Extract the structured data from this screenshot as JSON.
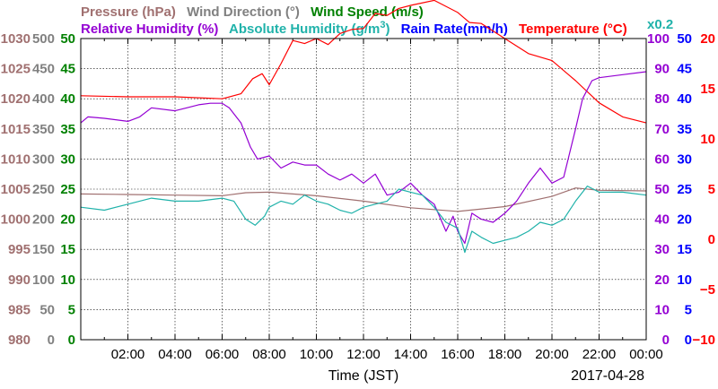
{
  "chart_data": {
    "type": "line",
    "colors": {
      "pressure": "#a07070",
      "wind_direction": "#808080",
      "wind_speed": "#008000",
      "relative_humidity": "#9400d3",
      "absolute_humidity": "#20b2aa",
      "rain_rate": "#0000ff",
      "temperature": "#ff0000"
    },
    "titles": {
      "pressure": "Pressure (hPa)",
      "wind_direction": "Wind Direction (°)",
      "wind_speed": "Wind Speed (m/s)",
      "relative_humidity": "Relative Humidity (%)",
      "absolute_humidity_prefix": "Absolute Humidity (g/m",
      "absolute_humidity_sup": "3",
      "absolute_humidity_suffix": ")",
      "rain_rate": "Rain Rate(mm/h)",
      "temperature_prefix": "Temperature (",
      "temperature_unit": "°C",
      "temperature_suffix": ")",
      "absolute_humidity_scale": "x0.2"
    },
    "xlabel": "Time (JST)",
    "date": "2017-04-28",
    "x_ticks": [
      "02:00",
      "04:00",
      "06:00",
      "08:00",
      "10:00",
      "12:00",
      "14:00",
      "16:00",
      "18:00",
      "20:00",
      "22:00",
      "00:00"
    ],
    "xlim": [
      0,
      24
    ],
    "axes": {
      "pressure": {
        "ticks": [
          "1030",
          "1025",
          "1020",
          "1015",
          "1010",
          "1005",
          "1000",
          "995",
          "990",
          "985",
          "980"
        ],
        "ylim": [
          980,
          1030
        ]
      },
      "wind_direction": {
        "ticks": [
          "500",
          "450",
          "400",
          "350",
          "300",
          "250",
          "200",
          "150",
          "100",
          "50",
          "0"
        ],
        "ylim": [
          0,
          500
        ]
      },
      "wind_speed": {
        "ticks": [
          "50",
          "45",
          "40",
          "35",
          "30",
          "25",
          "20",
          "15",
          "10",
          "5",
          "0"
        ],
        "ylim": [
          0,
          50
        ]
      },
      "relative_humidity": {
        "ticks": [
          "100",
          "90",
          "80",
          "70",
          "60",
          "50",
          "40",
          "30",
          "20",
          "10",
          "0"
        ],
        "ylim": [
          0,
          100
        ]
      },
      "rain_rate": {
        "ticks": [
          "50",
          "45",
          "40",
          "35",
          "30",
          "25",
          "20",
          "15",
          "10",
          "5",
          "0"
        ],
        "ylim": [
          0,
          50
        ]
      },
      "temperature": {
        "ticks": [
          "20",
          "15",
          "10",
          "5",
          "0",
          "−5",
          "−10"
        ],
        "ylim": [
          -10,
          20
        ]
      }
    },
    "series": [
      {
        "key": "pressure",
        "axis": "pressure",
        "points": [
          [
            0,
            1004.2
          ],
          [
            2,
            1004.1
          ],
          [
            4,
            1004.0
          ],
          [
            6,
            1003.9
          ],
          [
            7,
            1004.4
          ],
          [
            8,
            1004.5
          ],
          [
            10,
            1003.9
          ],
          [
            12,
            1003.0
          ],
          [
            14,
            1001.9
          ],
          [
            16,
            1001.3
          ],
          [
            18,
            1002.1
          ],
          [
            20,
            1003.8
          ],
          [
            21,
            1005.2
          ],
          [
            22,
            1004.8
          ],
          [
            24,
            1004.7
          ]
        ]
      },
      {
        "key": "temperature",
        "axis": "temperature",
        "points": [
          [
            0,
            14.3
          ],
          [
            2,
            14.2
          ],
          [
            4,
            14.2
          ],
          [
            6,
            14.0
          ],
          [
            6.8,
            14.5
          ],
          [
            7.3,
            16.0
          ],
          [
            7.7,
            16.5
          ],
          [
            8,
            15.4
          ],
          [
            8.5,
            17.5
          ],
          [
            9,
            19.8
          ],
          [
            9.5,
            19.5
          ],
          [
            10,
            20.0
          ],
          [
            10.5,
            19.4
          ],
          [
            11,
            20.5
          ],
          [
            11.5,
            20.9
          ],
          [
            12,
            21.0
          ],
          [
            12.5,
            22.5
          ],
          [
            13,
            22.3
          ],
          [
            13.5,
            23.0
          ],
          [
            14,
            23.3
          ],
          [
            15,
            23.8
          ],
          [
            16,
            22.6
          ],
          [
            16.5,
            21.6
          ],
          [
            17,
            21.5
          ],
          [
            18,
            20.0
          ],
          [
            19,
            18.5
          ],
          [
            20,
            17.8
          ],
          [
            21,
            15.8
          ],
          [
            22,
            13.6
          ],
          [
            23,
            12.2
          ],
          [
            24,
            11.6
          ]
        ]
      },
      {
        "key": "relative_humidity",
        "axis": "relative_humidity",
        "points": [
          [
            0,
            72
          ],
          [
            0.3,
            74
          ],
          [
            1,
            73.5
          ],
          [
            2,
            72.5
          ],
          [
            2.5,
            74
          ],
          [
            3,
            77
          ],
          [
            4,
            76
          ],
          [
            4.5,
            77
          ],
          [
            5,
            78
          ],
          [
            5.5,
            78.5
          ],
          [
            6,
            78.5
          ],
          [
            6.3,
            77
          ],
          [
            6.8,
            72
          ],
          [
            7.2,
            64
          ],
          [
            7.5,
            60
          ],
          [
            8,
            61
          ],
          [
            8.5,
            57
          ],
          [
            9,
            59
          ],
          [
            9.5,
            58
          ],
          [
            10,
            58
          ],
          [
            10.5,
            55
          ],
          [
            11,
            53
          ],
          [
            11.5,
            55
          ],
          [
            12,
            52
          ],
          [
            12.5,
            55
          ],
          [
            13,
            48
          ],
          [
            13.5,
            49
          ],
          [
            14,
            52
          ],
          [
            14.5,
            48
          ],
          [
            15,
            45
          ],
          [
            15.5,
            36
          ],
          [
            15.8,
            41
          ],
          [
            16,
            36
          ],
          [
            16.3,
            32
          ],
          [
            16.6,
            42
          ],
          [
            17,
            40
          ],
          [
            17.5,
            39
          ],
          [
            18,
            42
          ],
          [
            18.5,
            46
          ],
          [
            19,
            52
          ],
          [
            19.5,
            57
          ],
          [
            20,
            52
          ],
          [
            20.5,
            54
          ],
          [
            21,
            70
          ],
          [
            21.3,
            80
          ],
          [
            21.7,
            86
          ],
          [
            22,
            87
          ],
          [
            23,
            88
          ],
          [
            24,
            89
          ]
        ]
      },
      {
        "key": "absolute_humidity",
        "axis": "rain_rate",
        "points": [
          [
            0,
            22
          ],
          [
            1,
            21.5
          ],
          [
            2,
            22.5
          ],
          [
            3,
            23.5
          ],
          [
            4,
            23
          ],
          [
            5,
            23
          ],
          [
            6,
            23.5
          ],
          [
            6.5,
            23
          ],
          [
            7,
            20
          ],
          [
            7.4,
            19
          ],
          [
            7.8,
            20.5
          ],
          [
            8,
            22
          ],
          [
            8.5,
            23
          ],
          [
            9,
            22.5
          ],
          [
            9.5,
            24
          ],
          [
            10,
            23
          ],
          [
            10.5,
            22.5
          ],
          [
            11,
            21.5
          ],
          [
            11.5,
            21
          ],
          [
            12,
            22
          ],
          [
            12.5,
            22.5
          ],
          [
            13,
            23
          ],
          [
            13.5,
            25
          ],
          [
            14,
            24.5
          ],
          [
            14.5,
            24
          ],
          [
            15,
            22
          ],
          [
            15.5,
            19.5
          ],
          [
            16,
            18.5
          ],
          [
            16.3,
            14.5
          ],
          [
            16.6,
            18
          ],
          [
            17,
            17
          ],
          [
            17.5,
            16
          ],
          [
            18,
            16.5
          ],
          [
            18.5,
            17
          ],
          [
            19,
            18
          ],
          [
            19.5,
            19.5
          ],
          [
            20,
            19
          ],
          [
            20.5,
            20
          ],
          [
            21,
            23
          ],
          [
            21.5,
            25.5
          ],
          [
            22,
            24.5
          ],
          [
            23,
            24.5
          ],
          [
            24,
            24
          ]
        ]
      }
    ]
  }
}
